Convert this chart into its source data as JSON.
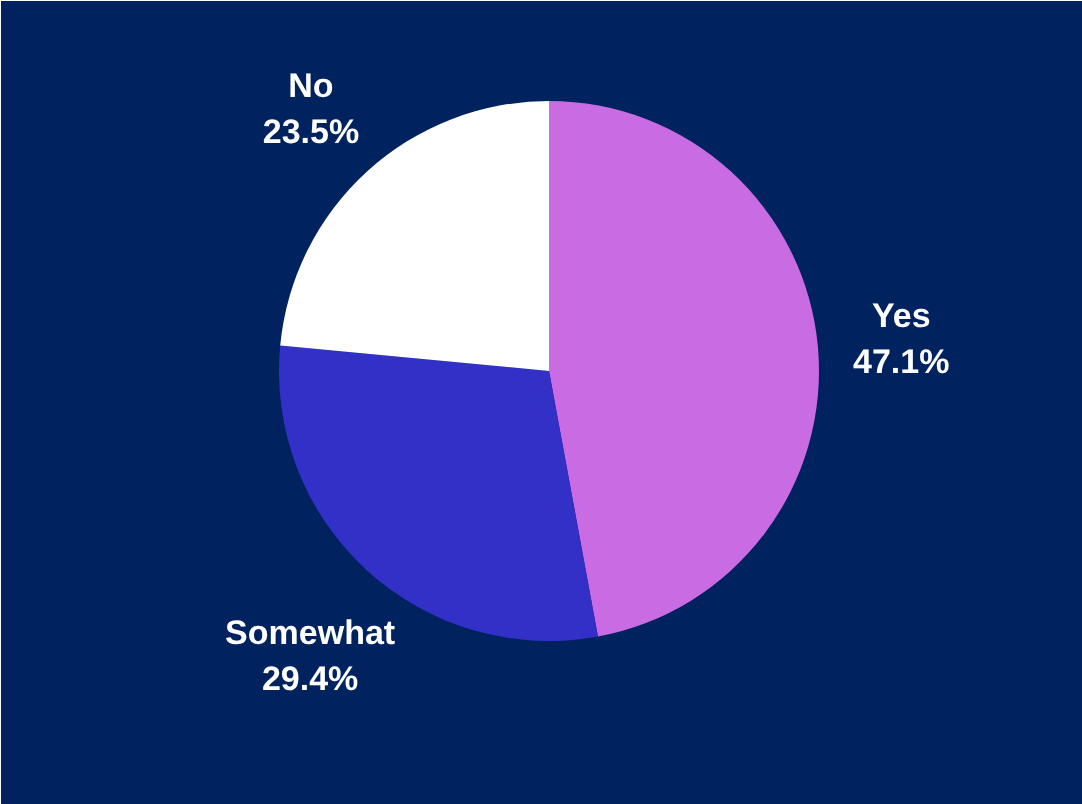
{
  "chart_data": {
    "type": "pie",
    "categories": [
      "Yes",
      "Somewhat",
      "No"
    ],
    "values": [
      47.1,
      29.4,
      23.5
    ],
    "colors": [
      "#c96be3",
      "#3330c8",
      "#ffffff"
    ],
    "value_labels": [
      "47.1%",
      "29.4%",
      "23.5%"
    ]
  }
}
